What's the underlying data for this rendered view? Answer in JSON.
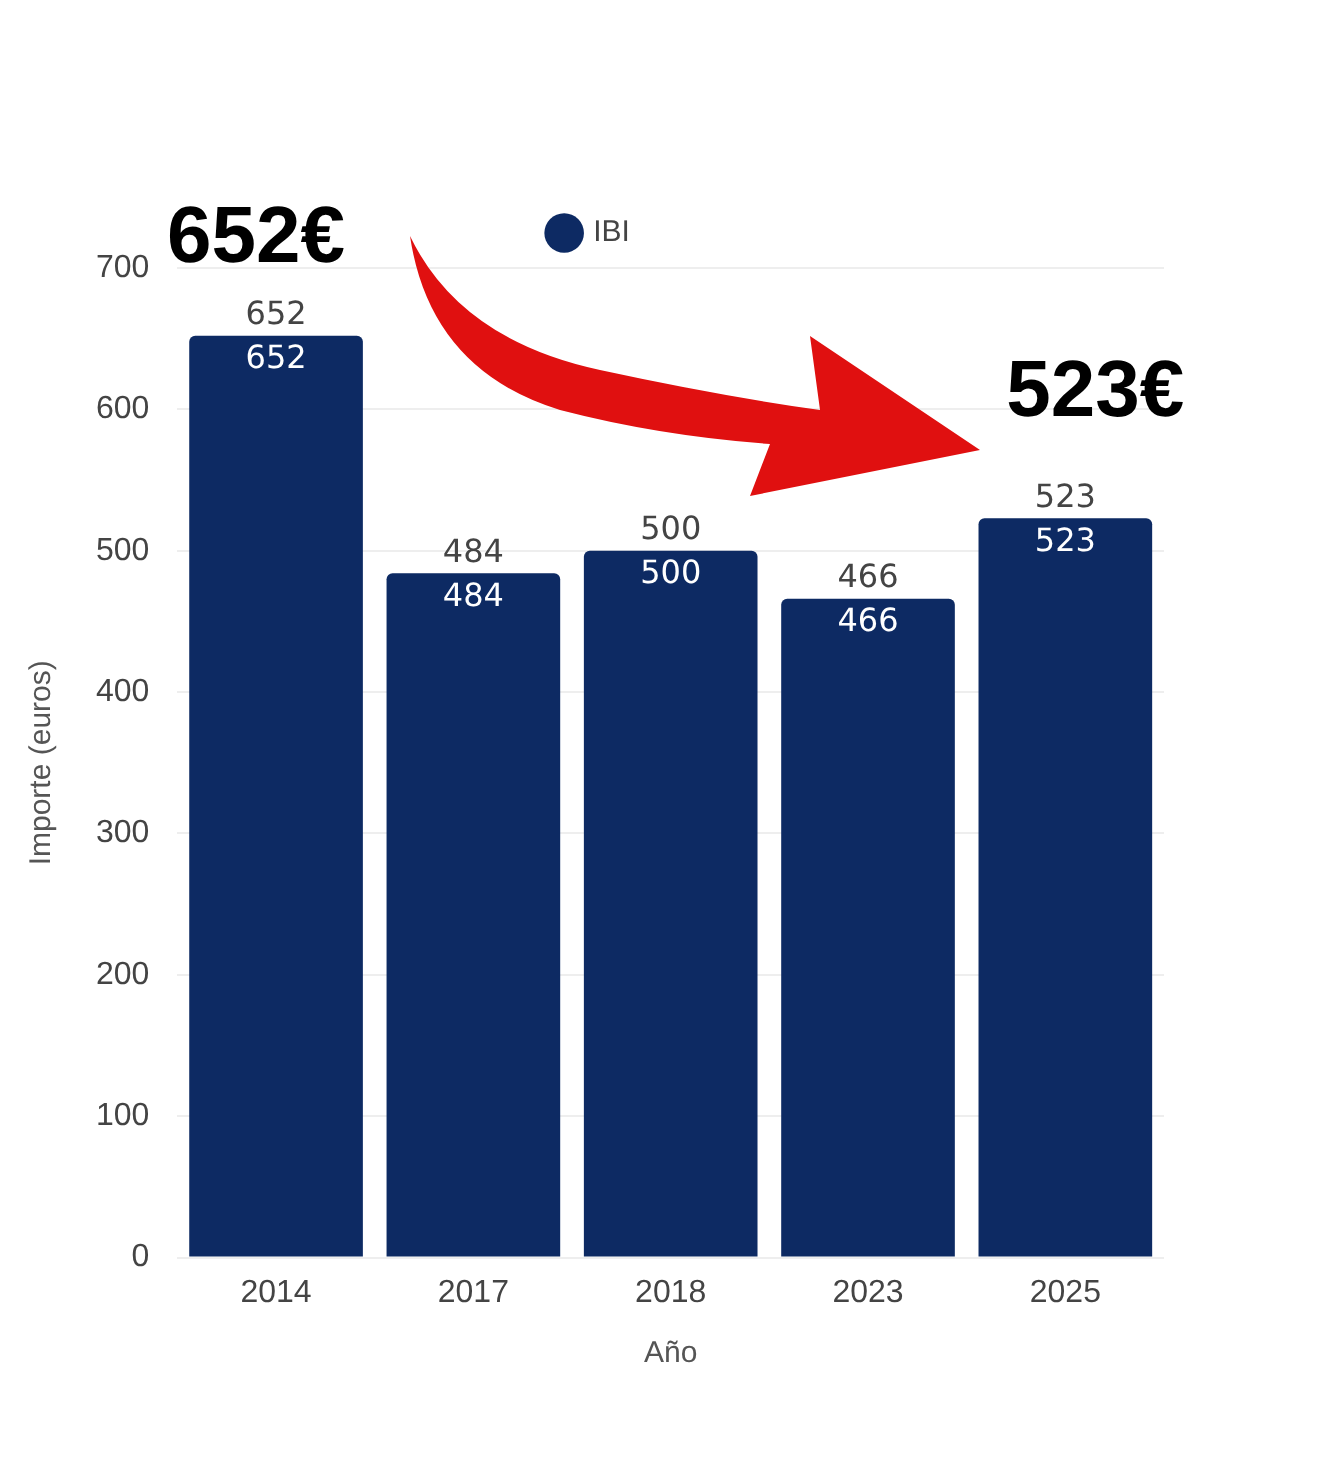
{
  "chart_data": {
    "type": "bar",
    "xlabel": "Año",
    "ylabel": "Importe (euros)",
    "categories": [
      "2014",
      "2017",
      "2018",
      "2023",
      "2025"
    ],
    "series": [
      {
        "name": "IBI",
        "color": "#0d2a63",
        "values": [
          652,
          484,
          500,
          466,
          523
        ]
      }
    ],
    "ylim": [
      0,
      700
    ],
    "yticks": [
      0,
      100,
      200,
      300,
      400,
      500,
      600,
      700
    ],
    "grid": "y",
    "legend": "top",
    "data_labels": true,
    "annotations": [
      "652€",
      "523€",
      {
        "text": "652",
        "x": "2014",
        "y": 652
      },
      {
        "text": "484",
        "x": "2017",
        "y": 484
      },
      {
        "text": "500",
        "x": "2018",
        "y": 500
      },
      {
        "text": "466",
        "x": "2023",
        "y": 466
      },
      {
        "text": "523",
        "x": "2025",
        "y": 523
      }
    ]
  }
}
